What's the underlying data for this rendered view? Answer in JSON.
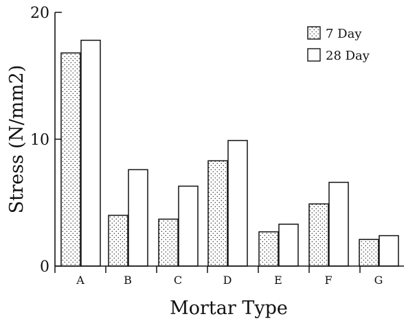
{
  "chart_data": {
    "type": "bar",
    "title": "",
    "xlabel": "Mortar Type",
    "ylabel": "Stress (N/mm2)",
    "categories": [
      "A",
      "B",
      "C",
      "D",
      "E",
      "F",
      "G"
    ],
    "series": [
      {
        "name": "7 Day",
        "values": [
          16.8,
          4.0,
          3.7,
          8.3,
          2.7,
          4.9,
          2.1
        ],
        "fill": "dotted"
      },
      {
        "name": "28 Day",
        "values": [
          17.8,
          7.6,
          6.3,
          9.9,
          3.3,
          6.6,
          2.4
        ],
        "fill": "white"
      }
    ],
    "ylim": [
      0,
      20
    ],
    "yticks": [
      0,
      10,
      20
    ],
    "grid": false,
    "legend_position": "top-right",
    "colors": {
      "axis": "#111111",
      "seven_day_fill": "#ffffff",
      "seven_day_dots": "#333333",
      "twenty_eight_day_fill": "#ffffff"
    }
  }
}
